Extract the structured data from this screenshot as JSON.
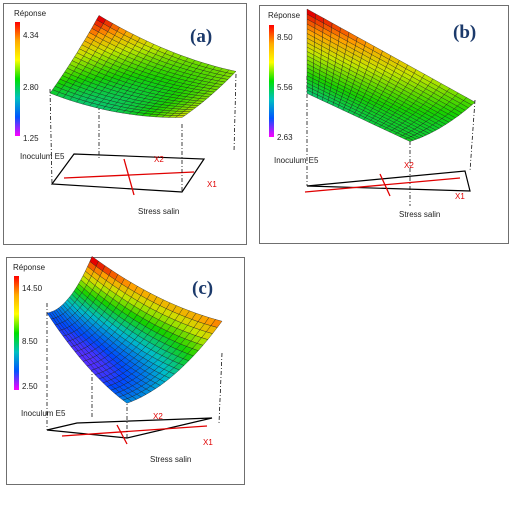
{
  "chart_data": [
    {
      "type": "surface",
      "panel_label": "(a)",
      "colorbar_label": "Réponse",
      "colorbar_ticks": [
        "4.34",
        "2.80",
        "1.25"
      ],
      "zlim": [
        1.25,
        4.34
      ],
      "z_axis_label": "Inoculum E5",
      "x_axis_label": "Stress salin",
      "factor_labels": [
        "X2",
        "X1"
      ],
      "surface_shape": "saddle, high corner back-left",
      "colors": {
        "high": "#ff0000",
        "mid": "#00c0c0",
        "low": "#ff00ff"
      }
    },
    {
      "type": "surface",
      "panel_label": "(b)",
      "colorbar_label": "Réponse",
      "colorbar_ticks": [
        "8.50",
        "5.56",
        "2.63"
      ],
      "zlim": [
        2.63,
        8.5
      ],
      "z_axis_label": "Inoculum E5",
      "x_axis_label": "Stress salin",
      "factor_labels": [
        "X2",
        "X1"
      ],
      "surface_shape": "bowl, high corner back-left",
      "colors": {
        "high": "#ff0000",
        "mid": "#00c0c0",
        "low": "#ff00ff"
      }
    },
    {
      "type": "surface",
      "panel_label": "(c)",
      "colorbar_label": "Réponse",
      "colorbar_ticks": [
        "14.50",
        "8.50",
        "2.50"
      ],
      "zlim": [
        2.5,
        14.5
      ],
      "z_axis_label": "Inoculum E5",
      "x_axis_label": "Stress salin",
      "factor_labels": [
        "X2",
        "X1"
      ],
      "surface_shape": "deep bowl",
      "colors": {
        "high": "#ff0000",
        "mid": "#00c0c0",
        "low": "#ff00ff"
      }
    }
  ]
}
